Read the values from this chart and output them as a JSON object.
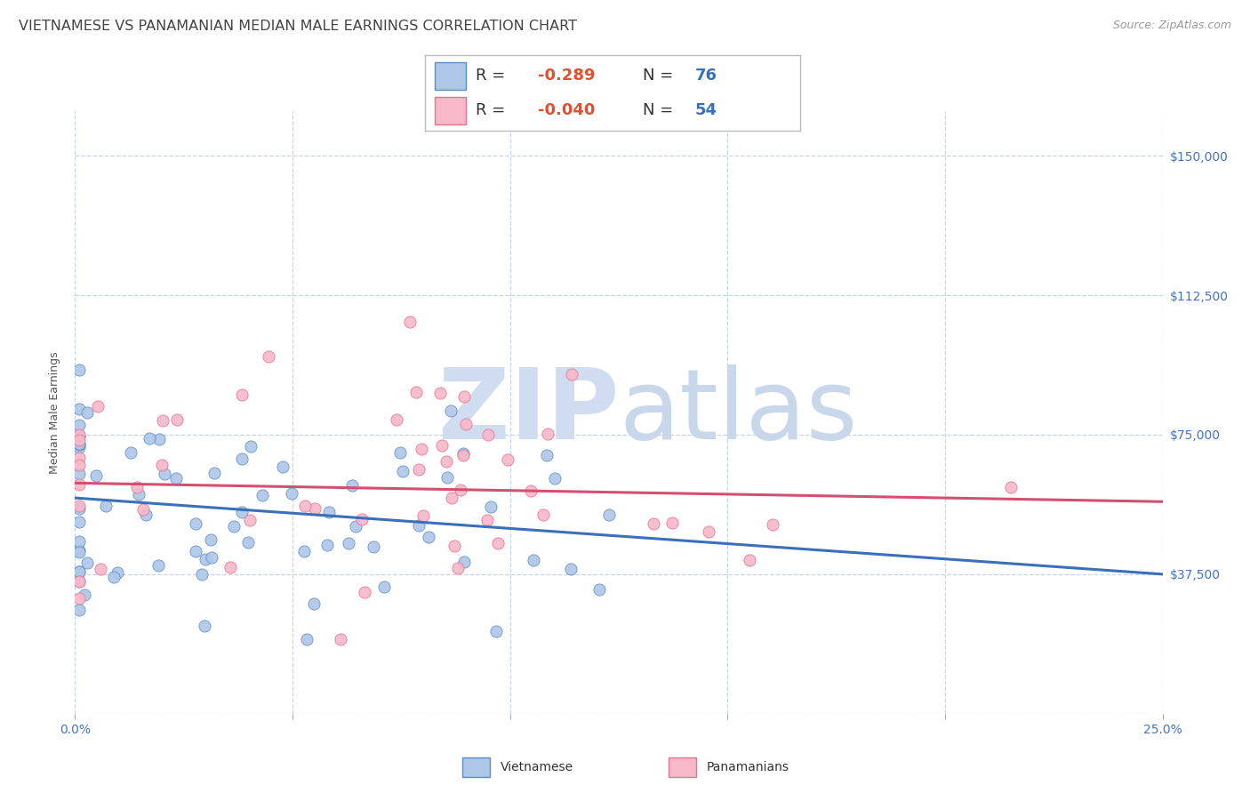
{
  "title": "VIETNAMESE VS PANAMANIAN MEDIAN MALE EARNINGS CORRELATION CHART",
  "source": "Source: ZipAtlas.com",
  "ylabel": "Median Male Earnings",
  "y_ticks": [
    0,
    37500,
    75000,
    112500,
    150000
  ],
  "y_tick_labels": [
    "",
    "$37,500",
    "$75,000",
    "$112,500",
    "$150,000"
  ],
  "x_ticks": [
    0.0,
    0.05,
    0.1,
    0.15,
    0.2,
    0.25
  ],
  "x_tick_labels": [
    "0.0%",
    "",
    "",
    "",
    "",
    "25.0%"
  ],
  "x_min": 0.0,
  "x_max": 0.25,
  "y_min": 15000,
  "y_max": 162000,
  "viet_R": -0.289,
  "viet_N": 76,
  "pan_R": -0.04,
  "pan_N": 54,
  "viet_color": "#aec6e8",
  "viet_edge_color": "#5b8ec4",
  "viet_line_color": "#3a6fba",
  "pan_color": "#f7b8c8",
  "pan_edge_color": "#e87090",
  "pan_line_color": "#d45070",
  "background_color": "#ffffff",
  "grid_color": "#c8d4e8",
  "title_color": "#444444",
  "watermark_zip_color": "#d0dcf0",
  "watermark_atlas_color": "#c8d8ea",
  "legend_border_color": "#bbbbbb",
  "tick_label_color": "#4472c4",
  "r_value_color": "#e05030",
  "n_value_color": "#3a6fba",
  "title_fontsize": 11.5,
  "axis_label_fontsize": 9,
  "tick_fontsize": 10,
  "legend_fontsize": 13,
  "source_fontsize": 9
}
